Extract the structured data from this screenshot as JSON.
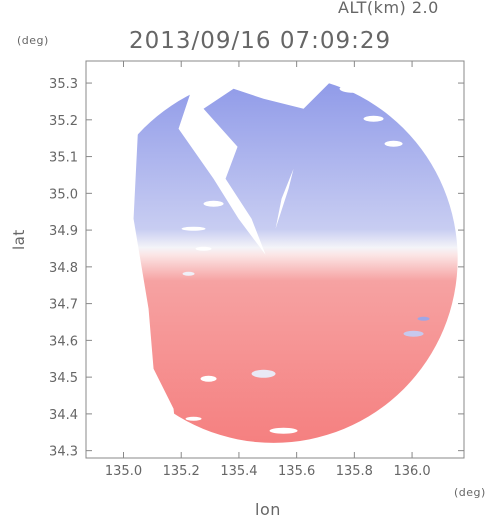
{
  "header": {
    "altitude_label": "ALT(km) 2.0",
    "timestamp": "2013/09/16 07:09:29"
  },
  "axes": {
    "y_unit": "(deg)",
    "x_unit": "(deg)",
    "x_label": "lon",
    "y_label": "lat",
    "x_ticks": [
      135.0,
      135.2,
      135.4,
      135.6,
      135.8,
      136.0
    ],
    "x_tick_labels": [
      "135.0",
      "135.2",
      "135.4",
      "135.6",
      "135.8",
      "136.0"
    ],
    "y_ticks": [
      34.3,
      34.4,
      34.5,
      34.6,
      34.7,
      34.8,
      34.9,
      35.0,
      35.1,
      35.2,
      35.3
    ],
    "y_tick_labels": [
      "34.3",
      "34.4",
      "34.5",
      "34.6",
      "34.7",
      "34.8",
      "34.9",
      "35.0",
      "35.1",
      "35.2",
      "35.3"
    ],
    "x_range": [
      134.87,
      136.18
    ],
    "y_range": [
      34.28,
      35.36
    ]
  },
  "map": {
    "radar_center": {
      "lon": 135.52,
      "lat": 34.822
    },
    "coverage_radius_deg": 0.58,
    "colors": {
      "toward": "#7b88e0",
      "away": "#f57878",
      "neutral": "#f4f4f8",
      "frame": "#888888"
    },
    "description_colors": [
      "blue (north half)",
      "red (south half)"
    ]
  }
}
